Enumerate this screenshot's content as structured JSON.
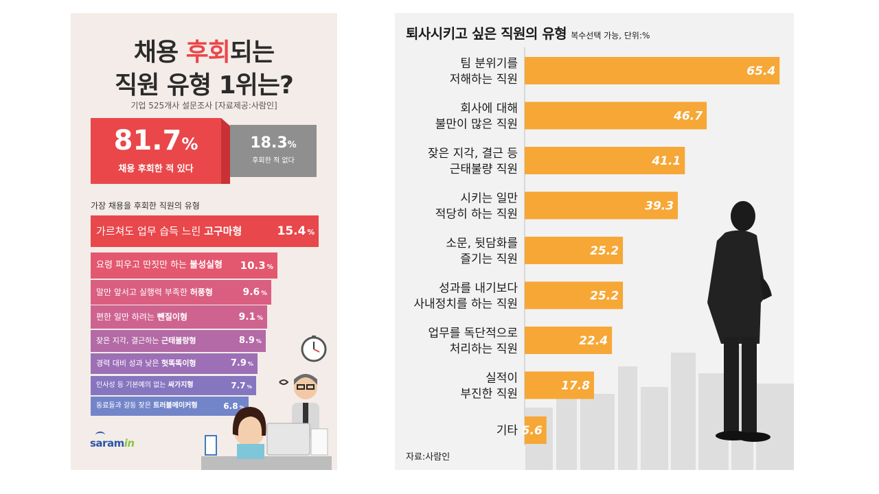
{
  "left_panel": {
    "title_line1_a": "채용 ",
    "title_line1_b": "후회",
    "title_line1_c": "되는",
    "title_line2": "직원 유형 1위는?",
    "survey_note": "기업 525개사 설문조사 [자료제공:사람인]",
    "stat_yes": {
      "value": "81.7",
      "unit": "%",
      "caption": "채용 후회한 적 있다"
    },
    "stat_no": {
      "value": "18.3",
      "unit": "%",
      "caption": "후회한 적 없다"
    },
    "list_heading": "가장 채용을 후회한 직원의 유형",
    "logo_a": "saram",
    "logo_b": "in",
    "colors": {
      "accent_red": "#e9474a",
      "gray": "#8f8f8f",
      "bg": "#f4ece8"
    }
  },
  "right_panel": {
    "title": "퇴사시키고 싶은 직원의 유형",
    "note": "복수선택 가능, 단위:%",
    "source": "자료:사람인",
    "colors": {
      "bar": "#f6a736",
      "bg": "#f2f2f2"
    }
  },
  "chart_data": [
    {
      "type": "bar",
      "orientation": "horizontal",
      "title": "가장 채용을 후회한 직원의 유형",
      "unit": "%",
      "categories": [
        "가르쳐도 업무 습득 느린 고구마형",
        "요령 피우고 딴짓만 하는 불성실형",
        "말만 앞서고 실행력 부족한 허풍형",
        "편한 일만 하려는 뺀질이형",
        "잦은 지각, 결근하는 근태불량형",
        "경력 대비 성과 낮은 헛똑똑이형",
        "인사성 등 기본예의 없는 싸가지형",
        "동료들과 갈등 잦은 트러블메이커형"
      ],
      "label_plain": [
        "가르쳐도 업무 습득 느린 ",
        "요령 피우고 딴짓만 하는 ",
        "말만 앞서고 실행력 부족한 ",
        "편한 일만 하려는 ",
        "잦은 지각, 결근하는 ",
        "경력 대비 성과 낮은 ",
        "인사성 등 기본예의 없는 ",
        "동료들과 갈등 잦은 "
      ],
      "label_bold": [
        "고구마형",
        "불성실형",
        "허풍형",
        "뺀질이형",
        "근태불량형",
        "헛똑똑이형",
        "싸가지형",
        "트러블메이커형"
      ],
      "values": [
        15.4,
        10.3,
        9.6,
        9.1,
        8.9,
        7.9,
        7.7,
        6.8
      ],
      "colors": [
        "#e8474b",
        "#e3576f",
        "#da5e80",
        "#cf6390",
        "#b36aa6",
        "#9c6fb6",
        "#8676c0",
        "#7385c9"
      ]
    },
    {
      "type": "bar",
      "orientation": "horizontal",
      "title": "퇴사시키고 싶은 직원의 유형",
      "unit": "%",
      "categories": [
        [
          "팀 분위기를",
          "저해하는 직원"
        ],
        [
          "회사에 대해",
          "불만이 많은 직원"
        ],
        [
          "잦은 지각, 결근 등",
          "근태불량 직원"
        ],
        [
          "시키는 일만",
          "적당히 하는 직원"
        ],
        [
          "소문, 뒷담화를",
          "즐기는 직원"
        ],
        [
          "성과를 내기보다",
          "사내정치를 하는 직원"
        ],
        [
          "업무를 독단적으로",
          "처리하는 직원"
        ],
        [
          "실적이",
          "부진한 직원"
        ],
        [
          "기타"
        ]
      ],
      "values": [
        65.4,
        46.7,
        41.1,
        39.3,
        25.2,
        25.2,
        22.4,
        17.8,
        5.6
      ],
      "xlim": [
        0,
        68
      ]
    }
  ]
}
